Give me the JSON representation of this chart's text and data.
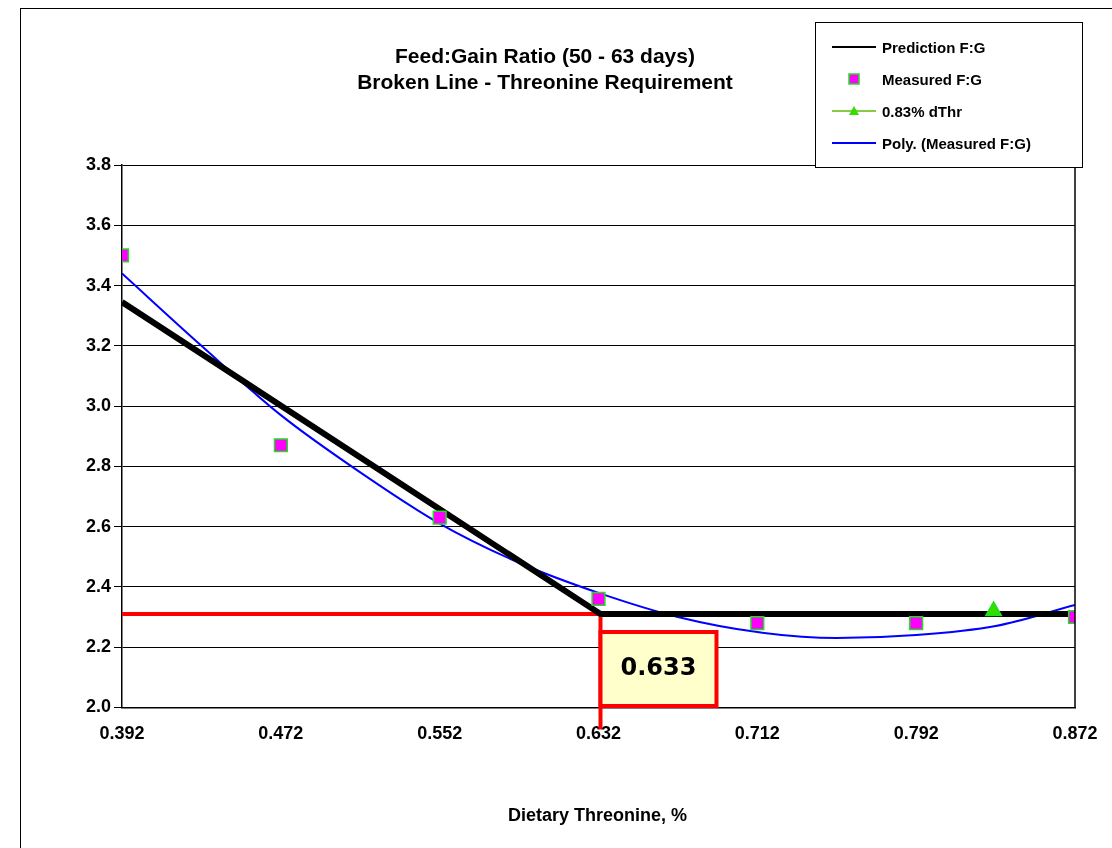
{
  "chart_data": {
    "type": "scatter",
    "title": "Feed:Gain Ratio (50 - 63 days)",
    "subtitle": "Broken Line - Threonine Requirement",
    "xlabel": "Dietary Threonine, %",
    "xlim": [
      0.392,
      0.872
    ],
    "xticks": [
      0.392,
      0.472,
      0.552,
      0.632,
      0.712,
      0.792,
      0.872
    ],
    "ylim": [
      2.0,
      3.8
    ],
    "yticks": [
      {
        "value": 2.0,
        "label": "2.0"
      },
      2.2,
      2.4,
      2.6,
      2.8,
      {
        "value": 3.0,
        "label": "3.0"
      },
      3.2,
      3.4,
      3.6,
      3.8
    ],
    "grid": "y",
    "legend": "top right",
    "annotations": [
      {
        "text": "0.633",
        "x": 0.633,
        "y": 2.31
      }
    ],
    "ref_lines": [
      {
        "axis": "y",
        "value": 2.31,
        "color": "#ff0000"
      },
      {
        "axis": "x",
        "value": 0.633,
        "color": "#ff0000"
      }
    ],
    "series": [
      {
        "name": "Prediction F:G",
        "type": "line",
        "color": "#000000",
        "marker": "none",
        "x": [
          0.392,
          0.633,
          0.872
        ],
        "values": [
          3.345,
          2.31,
          2.31
        ]
      },
      {
        "name": "Measured F:G",
        "type": "scatter",
        "color": "#ff00ff",
        "marker": "square",
        "x": [
          0.392,
          0.472,
          0.552,
          0.632,
          0.712,
          0.792,
          0.872
        ],
        "values": [
          3.5,
          2.87,
          2.63,
          2.36,
          2.28,
          2.28,
          2.3
        ]
      },
      {
        "name": "0.83% dThr",
        "type": "scatter",
        "color": "#33dd00",
        "marker": "triangle",
        "x": [
          0.831
        ],
        "values": [
          2.32
        ]
      },
      {
        "name": "Poly. (Measured F:G)",
        "type": "line",
        "color": "#0000ff",
        "marker": "none",
        "x": [
          0.392,
          0.432,
          0.472,
          0.512,
          0.552,
          0.592,
          0.632,
          0.672,
          0.712,
          0.752,
          0.792,
          0.832,
          0.872
        ],
        "values": [
          3.44,
          3.2,
          2.97,
          2.78,
          2.61,
          2.48,
          2.38,
          2.3,
          2.25,
          2.23,
          2.24,
          2.27,
          2.34
        ]
      }
    ]
  }
}
